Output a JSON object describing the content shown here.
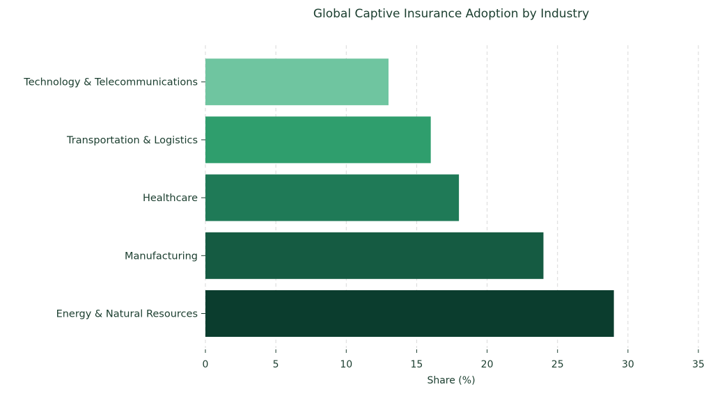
{
  "chart_data": {
    "type": "bar",
    "orientation": "horizontal",
    "title": "Global Captive Insurance Adoption by Industry",
    "xlabel": "Share (%)",
    "ylabel": "",
    "categories": [
      "Energy & Natural Resources",
      "Manufacturing",
      "Healthcare",
      "Transportation & Logistics",
      "Technology & Telecommunications"
    ],
    "values": [
      29,
      24,
      18,
      16,
      13
    ],
    "colors": [
      "#0b3d2e",
      "#155b42",
      "#1f7a57",
      "#2f9e6d",
      "#6fc5a0"
    ],
    "xlim": [
      0,
      35
    ],
    "xticks": [
      0,
      5,
      10,
      15,
      20,
      25,
      30,
      35
    ],
    "grid": "vertical dashed",
    "legend": "none"
  }
}
